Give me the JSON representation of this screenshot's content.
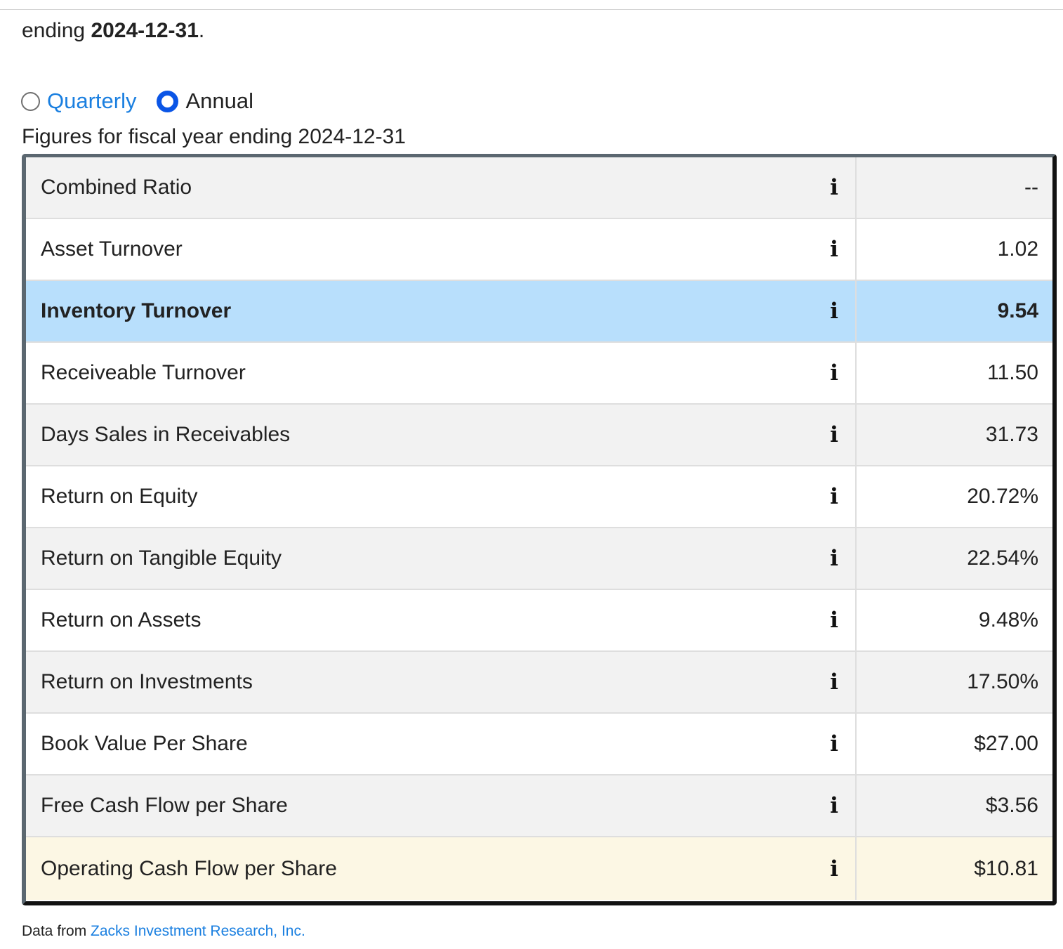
{
  "intro": {
    "prefix": "ending ",
    "date_bold": "2024-12-31",
    "suffix": "."
  },
  "period_toggle": {
    "options": [
      {
        "label": "Quarterly",
        "selected": false
      },
      {
        "label": "Annual",
        "selected": true
      }
    ]
  },
  "figures_caption": "Figures for fiscal year ending 2024-12-31",
  "info_icon_glyph": "i",
  "colors": {
    "link": "#1a7fe0",
    "radio_selected": "#0a55e6",
    "row_highlight": "#b8dffc",
    "row_cream": "#fcf7e4",
    "row_shade": "#f2f2f2"
  },
  "table": {
    "rows": [
      {
        "label": "Combined Ratio",
        "value": "--",
        "style": "shade"
      },
      {
        "label": "Asset Turnover",
        "value": "1.02",
        "style": "plain"
      },
      {
        "label": "Inventory Turnover",
        "value": "9.54",
        "style": "highlight"
      },
      {
        "label": "Receiveable Turnover",
        "value": "11.50",
        "style": "plain"
      },
      {
        "label": "Days Sales in Receivables",
        "value": "31.73",
        "style": "shade"
      },
      {
        "label": "Return on Equity",
        "value": "20.72%",
        "style": "plain"
      },
      {
        "label": "Return on Tangible Equity",
        "value": "22.54%",
        "style": "shade"
      },
      {
        "label": "Return on Assets",
        "value": "9.48%",
        "style": "plain"
      },
      {
        "label": "Return on Investments",
        "value": "17.50%",
        "style": "shade"
      },
      {
        "label": "Book Value Per Share",
        "value": "$27.00",
        "style": "plain"
      },
      {
        "label": "Free Cash Flow per Share",
        "value": "$3.56",
        "style": "shade"
      },
      {
        "label": "Operating Cash Flow per Share",
        "value": "$10.81",
        "style": "cream"
      }
    ]
  },
  "source": {
    "prefix": "Data from ",
    "link_text": "Zacks Investment Research, Inc."
  }
}
